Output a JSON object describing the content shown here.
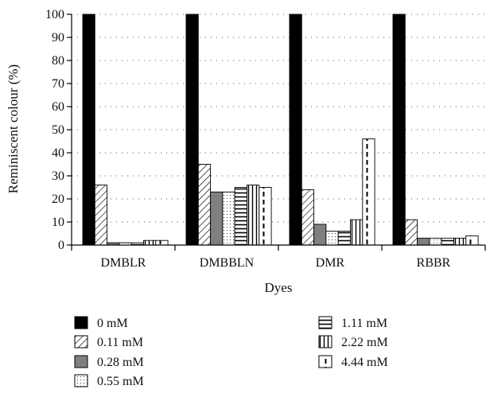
{
  "chart_data": {
    "type": "bar",
    "title": "",
    "xlabel": "Dyes",
    "ylabel": "Reminiscent colour (%)",
    "ylim": [
      0,
      100
    ],
    "yticks": [
      0,
      10,
      20,
      30,
      40,
      50,
      60,
      70,
      80,
      90,
      100
    ],
    "grid": "horizontal dotted",
    "legend_position": "bottom",
    "categories": [
      "DMBLR",
      "DMBBLN",
      "DMR",
      "RBBR"
    ],
    "series": [
      {
        "name": "0 mM",
        "pattern": "solid-black",
        "values": [
          100,
          100,
          100,
          100
        ]
      },
      {
        "name": "0.11 mM",
        "pattern": "diagonal-hatch",
        "values": [
          26,
          35,
          24,
          11
        ]
      },
      {
        "name": "0.28 mM",
        "pattern": "solid-gray",
        "values": [
          1,
          23,
          9,
          3
        ]
      },
      {
        "name": "0.55 mM",
        "pattern": "dotted",
        "values": [
          1,
          23,
          6,
          3
        ]
      },
      {
        "name": "1.11 mM",
        "pattern": "horizontal-lines",
        "values": [
          1,
          25,
          6,
          3
        ]
      },
      {
        "name": "2.22 mM",
        "pattern": "vertical-lines",
        "values": [
          2,
          26,
          11,
          3
        ]
      },
      {
        "name": "4.44 mM",
        "pattern": "dashed-vertical",
        "values": [
          2,
          25,
          46,
          4
        ]
      }
    ]
  }
}
